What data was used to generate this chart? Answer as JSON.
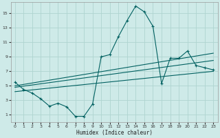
{
  "title": "",
  "xlabel": "Humidex (Indice chaleur)",
  "bg_color": "#ceeae8",
  "grid_color": "#aed4d0",
  "line_color": "#006060",
  "xlim": [
    -0.5,
    23.5
  ],
  "ylim": [
    0,
    16.5
  ],
  "xticks": [
    0,
    1,
    2,
    3,
    4,
    5,
    6,
    7,
    8,
    9,
    10,
    11,
    12,
    13,
    14,
    15,
    16,
    17,
    18,
    19,
    20,
    21,
    22,
    23
  ],
  "yticks": [
    1,
    3,
    5,
    7,
    9,
    11,
    13,
    15
  ],
  "main_x": [
    0,
    1,
    2,
    3,
    4,
    5,
    6,
    7,
    8,
    9,
    10,
    11,
    12,
    13,
    14,
    15,
    16,
    17,
    18,
    19,
    20,
    21,
    22,
    23
  ],
  "main_y": [
    5.5,
    4.5,
    4.0,
    3.2,
    2.2,
    2.6,
    2.1,
    0.8,
    0.8,
    2.5,
    9.0,
    9.3,
    11.8,
    14.0,
    16.0,
    15.2,
    13.2,
    5.3,
    8.8,
    8.8,
    9.8,
    7.8,
    7.5,
    7.2
  ],
  "trend1_x": [
    0,
    23
  ],
  "trend1_y": [
    5.0,
    9.5
  ],
  "trend2_x": [
    0,
    23
  ],
  "trend2_y": [
    4.8,
    8.5
  ],
  "trend3_x": [
    0,
    23
  ],
  "trend3_y": [
    4.2,
    7.0
  ]
}
